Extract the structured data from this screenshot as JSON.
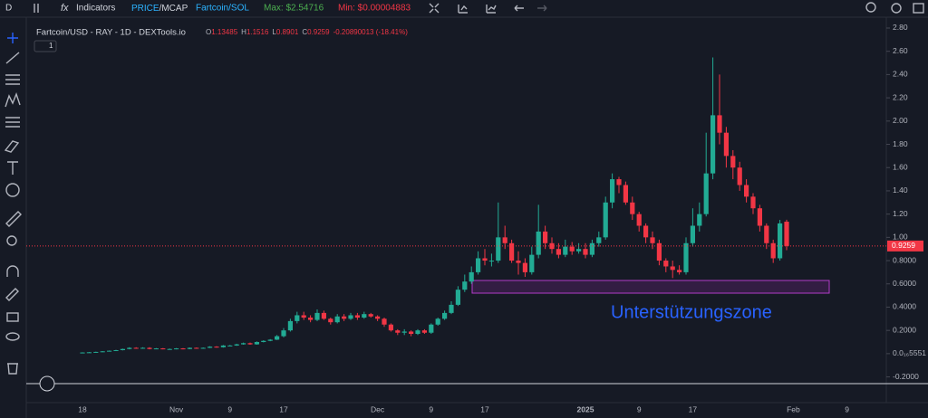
{
  "toolbar": {
    "interval": "D",
    "indicators": "Indicators",
    "price": "PRICE",
    "mcap": "/MCAP",
    "pair": "Fartcoin/SOL",
    "max": "Max: $2.54716",
    "min": "Min: $0.00004883"
  },
  "legend": {
    "title": "Fartcoin/USD - RAY - 1D - DEXTools.io",
    "ohlc": [
      {
        "key": "O",
        "value": "1.13485"
      },
      {
        "key": "H",
        "value": "1.1516"
      },
      {
        "key": "L",
        "value": "0.8901"
      },
      {
        "key": "C",
        "value": "0.9259"
      }
    ],
    "change": "-0.20890013 (-18.41%)",
    "badge": "1"
  },
  "chart_data": {
    "type": "candlestick",
    "annotation": "Unterstützungszone",
    "up_color": "#22ab94",
    "down_color": "#f23645",
    "categories": [
      "18",
      null,
      null,
      null,
      null,
      null,
      null,
      null,
      null,
      null,
      null,
      null,
      null,
      null,
      "Nov",
      null,
      null,
      null,
      null,
      null,
      null,
      null,
      "9",
      null,
      null,
      null,
      null,
      null,
      null,
      null,
      "17",
      null,
      null,
      null,
      null,
      null,
      null,
      null,
      null,
      null,
      null,
      null,
      null,
      null,
      "Dec",
      null,
      null,
      null,
      null,
      null,
      null,
      null,
      "9",
      null,
      null,
      null,
      null,
      null,
      null,
      null,
      "17",
      null,
      null,
      null,
      null,
      null,
      null,
      null,
      null,
      null,
      null,
      null,
      null,
      null,
      null,
      "2025",
      null,
      null,
      null,
      null,
      null,
      null,
      null,
      "9",
      null,
      null,
      null,
      null,
      null,
      null,
      null,
      "17",
      null,
      null,
      null,
      null,
      null,
      null,
      null,
      null,
      null,
      null,
      null,
      null,
      null,
      null,
      "Feb",
      null,
      null,
      null,
      null,
      null,
      null,
      null,
      "9",
      null,
      null,
      null,
      null,
      null
    ],
    "open": [
      0.008,
      0.01,
      0.012,
      0.015,
      0.02,
      0.025,
      0.03,
      0.04,
      0.05,
      0.045,
      0.05,
      0.04,
      0.045,
      0.04,
      0.04,
      0.045,
      0.04,
      0.05,
      0.045,
      0.05,
      0.06,
      0.055,
      0.07,
      0.07,
      0.08,
      0.09,
      0.08,
      0.1,
      0.11,
      0.12,
      0.15,
      0.2,
      0.28,
      0.33,
      0.31,
      0.29,
      0.35,
      0.3,
      0.27,
      0.32,
      0.3,
      0.33,
      0.31,
      0.34,
      0.32,
      0.3,
      0.25,
      0.2,
      0.18,
      0.19,
      0.17,
      0.2,
      0.18,
      0.25,
      0.3,
      0.35,
      0.42,
      0.55,
      0.62,
      0.7,
      0.82,
      0.8,
      0.8,
      1.0,
      0.95,
      0.8,
      0.78,
      0.7,
      0.85,
      1.05,
      0.95,
      0.9,
      0.85,
      0.92,
      0.88,
      0.9,
      0.85,
      0.95,
      1.0,
      1.3,
      1.5,
      1.45,
      1.3,
      1.2,
      1.1,
      1.0,
      0.95,
      0.8,
      0.75,
      0.72,
      0.7,
      0.95,
      1.1,
      1.2,
      1.55,
      2.05,
      1.9,
      1.7,
      1.6,
      1.45,
      1.35,
      1.25,
      1.1,
      0.95,
      0.82,
      1.13485,
      null,
      null,
      null,
      null,
      null,
      null,
      null,
      null,
      null,
      null,
      null,
      null,
      null,
      null
    ],
    "high": [
      0.012,
      0.014,
      0.017,
      0.022,
      0.027,
      0.033,
      0.043,
      0.055,
      0.055,
      0.055,
      0.055,
      0.048,
      0.048,
      0.044,
      0.048,
      0.048,
      0.053,
      0.053,
      0.053,
      0.064,
      0.064,
      0.074,
      0.075,
      0.085,
      0.095,
      0.095,
      0.105,
      0.115,
      0.125,
      0.16,
      0.22,
      0.3,
      0.36,
      0.36,
      0.33,
      0.38,
      0.37,
      0.31,
      0.34,
      0.34,
      0.35,
      0.35,
      0.36,
      0.35,
      0.33,
      0.31,
      0.26,
      0.21,
      0.21,
      0.2,
      0.21,
      0.21,
      0.26,
      0.31,
      0.37,
      0.45,
      0.58,
      0.68,
      0.75,
      0.88,
      0.9,
      0.86,
      1.3,
      1.1,
      0.98,
      0.88,
      0.82,
      0.92,
      1.28,
      1.1,
      1.0,
      0.95,
      0.98,
      0.96,
      0.95,
      0.95,
      0.98,
      1.05,
      1.35,
      1.55,
      1.52,
      1.48,
      1.35,
      1.22,
      1.12,
      1.05,
      0.98,
      0.82,
      0.8,
      0.76,
      1.0,
      1.25,
      1.3,
      1.9,
      2.54716,
      2.4,
      1.95,
      1.75,
      1.65,
      1.5,
      1.38,
      1.28,
      1.12,
      0.98,
      1.15,
      1.1516,
      null,
      null,
      null,
      null,
      null,
      null,
      null,
      null,
      null,
      null,
      null,
      null,
      null,
      null
    ],
    "low": [
      0.006,
      0.008,
      0.01,
      0.013,
      0.018,
      0.023,
      0.028,
      0.037,
      0.042,
      0.043,
      0.037,
      0.038,
      0.037,
      0.036,
      0.037,
      0.037,
      0.038,
      0.043,
      0.043,
      0.048,
      0.052,
      0.052,
      0.066,
      0.067,
      0.077,
      0.077,
      0.077,
      0.097,
      0.107,
      0.117,
      0.14,
      0.19,
      0.26,
      0.29,
      0.27,
      0.28,
      0.29,
      0.25,
      0.26,
      0.28,
      0.29,
      0.29,
      0.3,
      0.31,
      0.28,
      0.23,
      0.19,
      0.16,
      0.16,
      0.15,
      0.16,
      0.17,
      0.17,
      0.24,
      0.29,
      0.34,
      0.41,
      0.53,
      0.6,
      0.68,
      0.76,
      0.75,
      0.78,
      0.9,
      0.78,
      0.68,
      0.66,
      0.68,
      0.82,
      0.9,
      0.86,
      0.82,
      0.83,
      0.85,
      0.86,
      0.82,
      0.83,
      0.92,
      0.98,
      1.25,
      1.38,
      1.28,
      1.15,
      1.05,
      0.95,
      0.9,
      0.76,
      0.7,
      0.65,
      0.68,
      0.68,
      0.92,
      1.05,
      1.18,
      1.5,
      1.8,
      1.6,
      1.5,
      1.4,
      1.3,
      1.2,
      1.05,
      0.9,
      0.78,
      0.8,
      0.8901,
      null,
      null,
      null,
      null,
      null,
      null,
      null,
      null,
      null,
      null,
      null,
      null,
      null,
      null
    ],
    "close": [
      0.01,
      0.012,
      0.015,
      0.02,
      0.025,
      0.03,
      0.04,
      0.05,
      0.045,
      0.05,
      0.04,
      0.045,
      0.04,
      0.04,
      0.045,
      0.04,
      0.05,
      0.045,
      0.05,
      0.06,
      0.055,
      0.07,
      0.07,
      0.08,
      0.09,
      0.08,
      0.1,
      0.11,
      0.12,
      0.15,
      0.2,
      0.28,
      0.33,
      0.31,
      0.29,
      0.35,
      0.3,
      0.27,
      0.32,
      0.3,
      0.33,
      0.31,
      0.34,
      0.32,
      0.3,
      0.25,
      0.2,
      0.18,
      0.19,
      0.17,
      0.2,
      0.18,
      0.25,
      0.3,
      0.35,
      0.42,
      0.55,
      0.62,
      0.7,
      0.82,
      0.8,
      0.8,
      1.0,
      0.95,
      0.8,
      0.78,
      0.7,
      0.85,
      1.05,
      0.95,
      0.9,
      0.85,
      0.92,
      0.88,
      0.9,
      0.85,
      0.95,
      1.0,
      1.3,
      1.5,
      1.45,
      1.3,
      1.2,
      1.1,
      1.0,
      0.95,
      0.8,
      0.75,
      0.72,
      0.7,
      0.95,
      1.1,
      1.2,
      1.55,
      2.05,
      1.9,
      1.7,
      1.6,
      1.45,
      1.35,
      1.25,
      1.1,
      0.95,
      0.82,
      1.12,
      0.9259,
      null,
      null,
      null,
      null,
      null,
      null,
      null,
      null,
      null,
      null,
      null,
      null,
      null,
      null
    ],
    "ylim": [
      -0.32,
      2.87
    ],
    "yticks": [
      {
        "value": 2.8,
        "label": "2.80"
      },
      {
        "value": 2.6,
        "label": "2.60"
      },
      {
        "value": 2.4,
        "label": "2.40"
      },
      {
        "value": 2.2,
        "label": "2.20"
      },
      {
        "value": 2.0,
        "label": "2.00"
      },
      {
        "value": 1.8,
        "label": "1.80"
      },
      {
        "value": 1.6,
        "label": "1.60"
      },
      {
        "value": 1.4,
        "label": "1.40"
      },
      {
        "value": 1.2,
        "label": "1.20"
      },
      {
        "value": 1.0,
        "label": "1.00"
      },
      {
        "value": 0.8,
        "label": "0.8000"
      },
      {
        "value": 0.6,
        "label": "0.6000"
      },
      {
        "value": 0.4,
        "label": "0.4000"
      },
      {
        "value": 0.2,
        "label": "0.2000"
      },
      {
        "value": 0,
        "label": "0.0₁₆5551"
      },
      {
        "value": -0.2,
        "label": "-0.2000"
      }
    ]
  }
}
